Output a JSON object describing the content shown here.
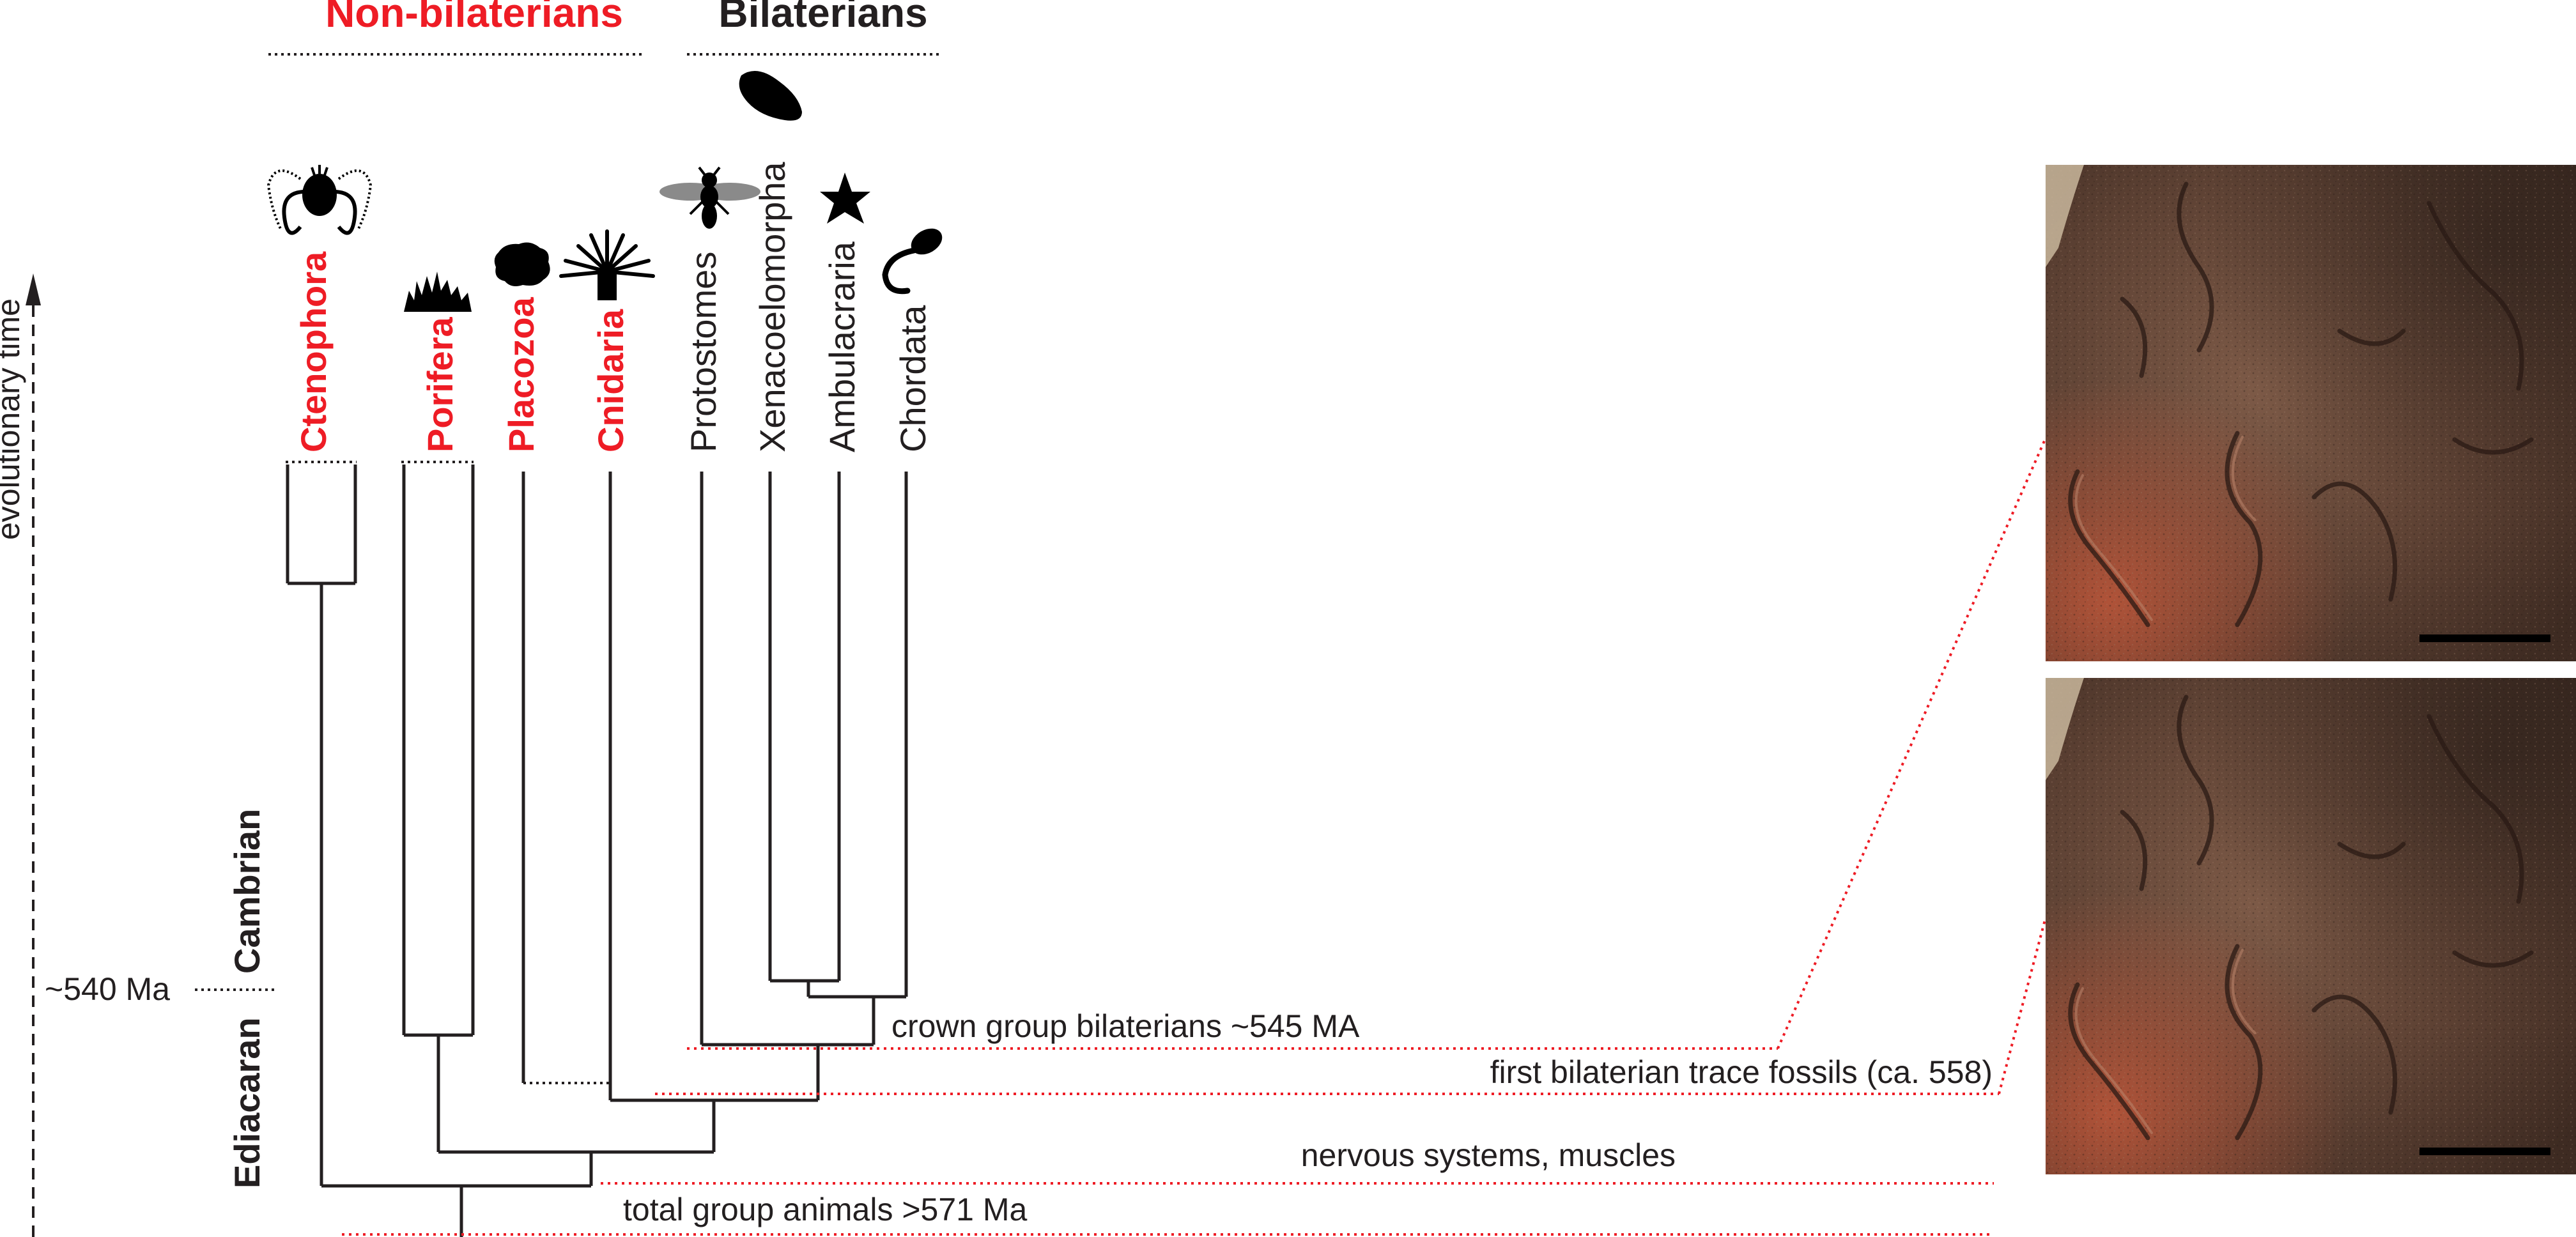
{
  "headers": {
    "non_bilaterians": "Non-bilaterians",
    "bilaterians": "Bilaterians"
  },
  "axis": {
    "label": "evolutionary time",
    "marker": "~540 Ma"
  },
  "periods": {
    "upper": "Cambrian",
    "lower": "Ediacaran"
  },
  "taxa": {
    "ctenophora": "Ctenophora",
    "porifera": "Porifera",
    "placozoa": "Placozoa",
    "cnidaria": "Cnidaria",
    "protostomes": "Protostomes",
    "xenacoelomorpha": "Xenacoelomorpha",
    "ambulacraria": "Ambulacraria",
    "chordata": "Chordata"
  },
  "annotations": {
    "crown": "crown group bilaterians ~545 MA",
    "trace": "first bilaterian trace fossils (ca. 558)",
    "nervous": "nervous systems, muscles",
    "total": "total group animals >571 Ma"
  },
  "icons": {
    "ctenophora": "comb-jelly-icon",
    "porifera": "sponge-icon",
    "placozoa": "placozoan-icon",
    "cnidaria": "sea-anemone-icon",
    "protostomes": "insect-icon",
    "xenacoelomorpha": "acoel-worm-icon",
    "ambulacraria": "starfish-icon",
    "chordata": "tadpole-icon"
  },
  "colors": {
    "non_bilaterian": "#ee1c25",
    "bilaterian": "#231f20",
    "leader_lines": "#ee1c25",
    "fossil_rock": "#6b4a3a"
  }
}
